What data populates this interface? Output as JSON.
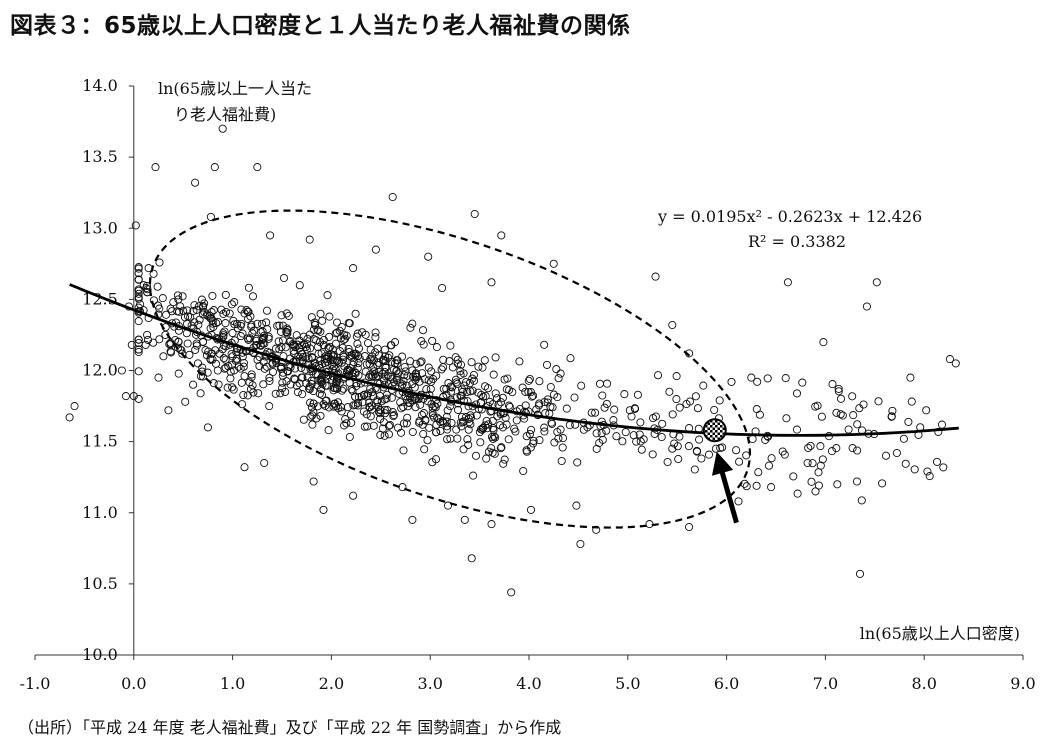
{
  "title": "図表３：65歳以上人口密度と１人当たり老人福祉費の関係",
  "source": "（出所）「平成 24 年度 老人福祉費」及び「平成 22 年 国勢調査」から作成",
  "chart_data": {
    "type": "scatter",
    "title": "図表３：65歳以上人口密度と１人当たり老人福祉費の関係",
    "xlabel": "ln(65歳以上人口密度)",
    "ylabel_lines": [
      "ln(65歳以上一人当た",
      "り老人福祉費)"
    ],
    "xlim": [
      -1.0,
      9.0
    ],
    "ylim": [
      10.0,
      14.0
    ],
    "x_ticks": [
      "-1.0",
      "0.0",
      "1.0",
      "2.0",
      "3.0",
      "4.0",
      "5.0",
      "6.0",
      "7.0",
      "8.0",
      "9.0"
    ],
    "y_ticks": [
      "10.0",
      "10.5",
      "11.0",
      "11.5",
      "12.0",
      "12.5",
      "13.0",
      "13.5",
      "14.0"
    ],
    "trendline": {
      "type": "quadratic",
      "a": 0.0195,
      "b": -0.2623,
      "c": 12.426,
      "x_range": [
        -0.65,
        8.35
      ],
      "equation": "y = 0.0195x² - 0.2623x + 12.426",
      "r2": "R² = 0.3382"
    },
    "highlight_point": {
      "x": 5.88,
      "y": 11.58
    },
    "ellipse_annotation": {
      "cx": 3.2,
      "cy": 12.01,
      "rx": 3.18,
      "ry": 0.9,
      "rotation_deg": 19
    },
    "arrow_annotation": {
      "from": [
        6.1,
        10.93
      ],
      "to": [
        5.9,
        11.43
      ]
    },
    "points": [
      [
        -0.65,
        11.67
      ],
      [
        -0.6,
        11.75
      ],
      [
        -0.12,
        12.0
      ],
      [
        -0.08,
        11.82
      ],
      [
        -0.05,
        12.45
      ],
      [
        -0.02,
        12.18
      ],
      [
        0.0,
        11.82
      ],
      [
        0.05,
        11.8
      ],
      [
        0.1,
        12.6
      ],
      [
        0.15,
        12.72
      ],
      [
        0.2,
        12.68
      ],
      [
        0.25,
        11.95
      ],
      [
        0.3,
        12.1
      ],
      [
        0.35,
        11.72
      ],
      [
        0.4,
        12.48
      ],
      [
        0.45,
        12.5
      ],
      [
        0.5,
        12.42
      ],
      [
        0.55,
        12.38
      ],
      [
        0.6,
        11.9
      ],
      [
        0.65,
        12.05
      ],
      [
        0.7,
        12.2
      ],
      [
        0.75,
        11.6
      ],
      [
        0.8,
        12.35
      ],
      [
        0.85,
        12.0
      ],
      [
        0.9,
        12.15
      ],
      [
        0.95,
        11.88
      ],
      [
        1.0,
        12.1
      ],
      [
        0.02,
        13.02
      ],
      [
        0.22,
        13.43
      ],
      [
        0.62,
        13.32
      ],
      [
        0.82,
        13.43
      ],
      [
        0.9,
        13.7
      ],
      [
        1.25,
        13.43
      ],
      [
        0.78,
        13.08
      ],
      [
        1.38,
        12.95
      ],
      [
        1.78,
        12.92
      ],
      [
        1.18,
        12.38
      ],
      [
        1.52,
        12.65
      ],
      [
        0.32,
        12.25
      ],
      [
        0.12,
        12.18
      ],
      [
        0.52,
        11.78
      ],
      [
        1.12,
        11.32
      ],
      [
        1.32,
        11.35
      ],
      [
        1.92,
        11.02
      ],
      [
        2.82,
        10.95
      ],
      [
        3.35,
        10.95
      ],
      [
        3.62,
        10.92
      ],
      [
        4.68,
        10.88
      ],
      [
        5.22,
        10.92
      ],
      [
        5.62,
        10.9
      ],
      [
        3.42,
        10.68
      ],
      [
        3.82,
        10.44
      ],
      [
        4.52,
        10.78
      ],
      [
        2.62,
        13.22
      ],
      [
        3.45,
        13.1
      ],
      [
        3.72,
        12.95
      ],
      [
        2.8,
        12.3
      ],
      [
        4.48,
        11.05
      ],
      [
        5.28,
        12.66
      ],
      [
        5.45,
        12.32
      ],
      [
        5.62,
        12.12
      ],
      [
        6.62,
        12.62
      ],
      [
        6.98,
        12.2
      ],
      [
        7.42,
        12.45
      ],
      [
        7.52,
        12.62
      ],
      [
        7.35,
        10.57
      ],
      [
        7.86,
        11.95
      ],
      [
        8.26,
        12.08
      ],
      [
        8.32,
        12.05
      ],
      [
        6.82,
        11.35
      ],
      [
        5.02,
        11.72
      ],
      [
        5.45,
        11.45
      ],
      [
        6.25,
        11.95
      ],
      [
        6.05,
        11.92
      ],
      [
        7.12,
        11.2
      ],
      [
        4.25,
        12.75
      ],
      [
        3.62,
        12.62
      ],
      [
        2.98,
        12.8
      ],
      [
        2.22,
        12.72
      ],
      [
        1.68,
        12.6
      ],
      [
        2.45,
        12.85
      ],
      [
        3.12,
        12.58
      ],
      [
        1.82,
        11.22
      ],
      [
        2.22,
        11.12
      ],
      [
        2.72,
        11.18
      ],
      [
        3.18,
        11.05
      ],
      [
        4.02,
        11.02
      ],
      [
        6.12,
        11.08
      ],
      [
        6.45,
        11.18
      ],
      [
        6.9,
        11.15
      ],
      [
        7.32,
        11.22
      ],
      [
        8.02,
        11.72
      ],
      [
        8.18,
        11.62
      ]
    ]
  }
}
